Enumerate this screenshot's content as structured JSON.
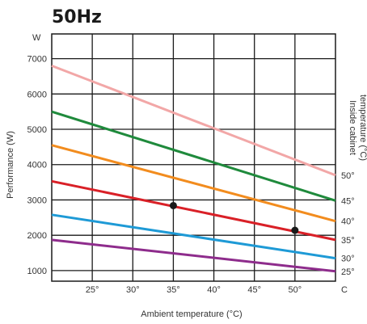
{
  "chart_data": {
    "type": "line",
    "title": "50Hz",
    "xlabel": "Ambient temperature (°C)",
    "ylabel": "Performance (W)",
    "y_unit_label": "W",
    "x_unit_label": "C",
    "right_axis_label_line1": "Inside cabinet",
    "right_axis_label_line2": "temperature (°C)",
    "xlim": [
      20,
      55
    ],
    "ylim": [
      700,
      7700
    ],
    "x_ticks": [
      25,
      30,
      35,
      40,
      45,
      50
    ],
    "x_tick_labels": [
      "25°",
      "30°",
      "35°",
      "40°",
      "45°",
      "50°"
    ],
    "y_ticks": [
      1000,
      2000,
      3000,
      4000,
      5000,
      6000,
      7000
    ],
    "y_tick_labels": [
      "1000",
      "2000",
      "3000",
      "4000",
      "5000",
      "6000",
      "7000"
    ],
    "grid": true,
    "series": [
      {
        "name": "50°",
        "color": "#f2a7a7",
        "x": [
          20,
          55
        ],
        "y": [
          6800,
          3700
        ]
      },
      {
        "name": "45°",
        "color": "#1f8a3c",
        "x": [
          20,
          55
        ],
        "y": [
          5500,
          2980
        ]
      },
      {
        "name": "40°",
        "color": "#f28c1e",
        "x": [
          20,
          55
        ],
        "y": [
          4550,
          2400
        ]
      },
      {
        "name": "35°",
        "color": "#d92027",
        "x": [
          20,
          55
        ],
        "y": [
          3530,
          1870
        ]
      },
      {
        "name": "30°",
        "color": "#1e9ad6",
        "x": [
          20,
          55
        ],
        "y": [
          2580,
          1350
        ]
      },
      {
        "name": "25°",
        "color": "#8e2c8c",
        "x": [
          20,
          55
        ],
        "y": [
          1870,
          980
        ]
      }
    ],
    "markers": [
      {
        "x": 35,
        "y": 2840
      },
      {
        "x": 50,
        "y": 2140
      }
    ]
  }
}
